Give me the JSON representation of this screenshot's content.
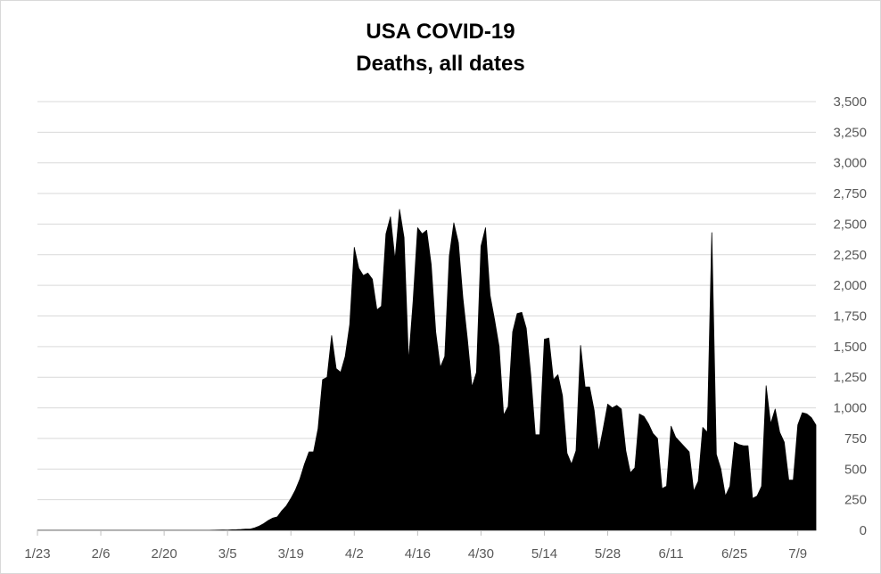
{
  "chart_data": {
    "type": "area",
    "title": "USA COVID-19",
    "subtitle": "Deaths, all dates",
    "xlabel": "",
    "ylabel": "",
    "y_axis_position": "right",
    "grid": true,
    "ylim": [
      0,
      3500
    ],
    "y_ticks": [
      "0",
      "250",
      "500",
      "750",
      "1,000",
      "1,250",
      "1,500",
      "1,750",
      "2,000",
      "2,250",
      "2,500",
      "2,750",
      "3,000",
      "3,250",
      "3,500"
    ],
    "x_ticks": [
      "1/23",
      "2/6",
      "2/20",
      "3/5",
      "3/19",
      "4/2",
      "4/16",
      "4/30",
      "5/14",
      "5/28",
      "6/11",
      "6/25",
      "7/9"
    ],
    "x_start": "1/23",
    "fill_color": "#000000",
    "grid_color": "#d9d9d9",
    "series": [
      {
        "values": [
          0,
          0,
          0,
          0,
          0,
          0,
          0,
          0,
          0,
          0,
          0,
          0,
          0,
          0,
          0,
          0,
          0,
          0,
          0,
          0,
          0,
          0,
          0,
          0,
          0,
          0,
          0,
          0,
          0,
          0,
          0,
          0,
          0,
          0,
          0,
          0,
          0,
          0,
          0,
          1,
          2,
          3,
          2,
          4,
          5,
          7,
          10,
          10,
          20,
          35,
          55,
          80,
          100,
          110,
          160,
          200,
          260,
          330,
          420,
          540,
          640,
          640,
          830,
          1230,
          1250,
          1590,
          1320,
          1290,
          1420,
          1680,
          2310,
          2140,
          2080,
          2100,
          2050,
          1800,
          1830,
          2420,
          2560,
          2210,
          2620,
          2390,
          1380,
          1870,
          2470,
          2420,
          2450,
          2170,
          1620,
          1330,
          1420,
          2240,
          2510,
          2350,
          1900,
          1560,
          1170,
          1290,
          2320,
          2470,
          1920,
          1720,
          1500,
          940,
          1010,
          1620,
          1770,
          1780,
          1650,
          1270,
          780,
          780,
          1560,
          1570,
          1230,
          1270,
          1100,
          630,
          540,
          650,
          1510,
          1170,
          1170,
          980,
          640,
          830,
          1030,
          1000,
          1020,
          990,
          650,
          470,
          510,
          950,
          930,
          870,
          790,
          750,
          340,
          360,
          850,
          760,
          720,
          680,
          640,
          320,
          400,
          840,
          800,
          2430,
          620,
          500,
          280,
          360,
          720,
          700,
          690,
          690,
          260,
          280,
          360,
          1180,
          870,
          990,
          800,
          720,
          410,
          410,
          860,
          960,
          950,
          920,
          860
        ]
      }
    ]
  }
}
